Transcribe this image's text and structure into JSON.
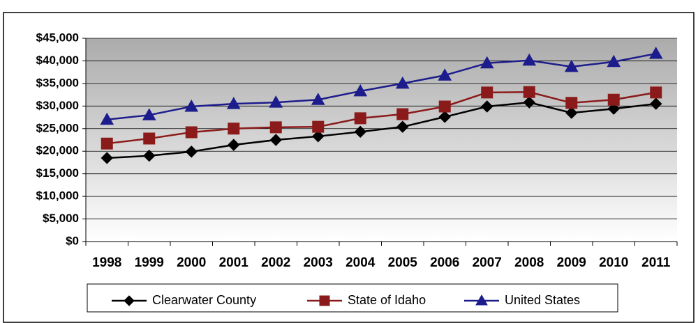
{
  "chart_data": {
    "type": "line",
    "categories": [
      "1998",
      "1999",
      "2000",
      "2001",
      "2002",
      "2003",
      "2004",
      "2005",
      "2006",
      "2007",
      "2008",
      "2009",
      "2010",
      "2011"
    ],
    "series": [
      {
        "name": "Clearwater County",
        "color": "#000000",
        "marker": "diamond",
        "values": [
          18500,
          19000,
          19900,
          21400,
          22500,
          23300,
          24300,
          25400,
          27600,
          29900,
          30800,
          28500,
          29400,
          30500
        ]
      },
      {
        "name": "State of Idaho",
        "color": "#8b1a1a",
        "marker": "square",
        "values": [
          21700,
          22800,
          24200,
          25000,
          25300,
          25400,
          27300,
          28200,
          29900,
          33000,
          33100,
          30700,
          31400,
          33000
        ]
      },
      {
        "name": "United States",
        "color": "#1c1c8c",
        "marker": "triangle",
        "values": [
          27000,
          28000,
          29900,
          30500,
          30800,
          31400,
          33300,
          35000,
          36800,
          39500,
          40100,
          38700,
          39800,
          41600
        ]
      }
    ],
    "ylim": [
      0,
      45000
    ],
    "yticks": [
      {
        "value": 0,
        "label": "$0"
      },
      {
        "value": 5000,
        "label": "$5,000"
      },
      {
        "value": 10000,
        "label": "$10,000"
      },
      {
        "value": 15000,
        "label": "$15,000"
      },
      {
        "value": 20000,
        "label": "$20,000"
      },
      {
        "value": 25000,
        "label": "$25,000"
      },
      {
        "value": 30000,
        "label": "$30,000"
      },
      {
        "value": 35000,
        "label": "$35,000"
      },
      {
        "value": 40000,
        "label": "$40,000"
      },
      {
        "value": 45000,
        "label": "$45,000"
      }
    ],
    "grid": true,
    "legend": "bottom"
  }
}
